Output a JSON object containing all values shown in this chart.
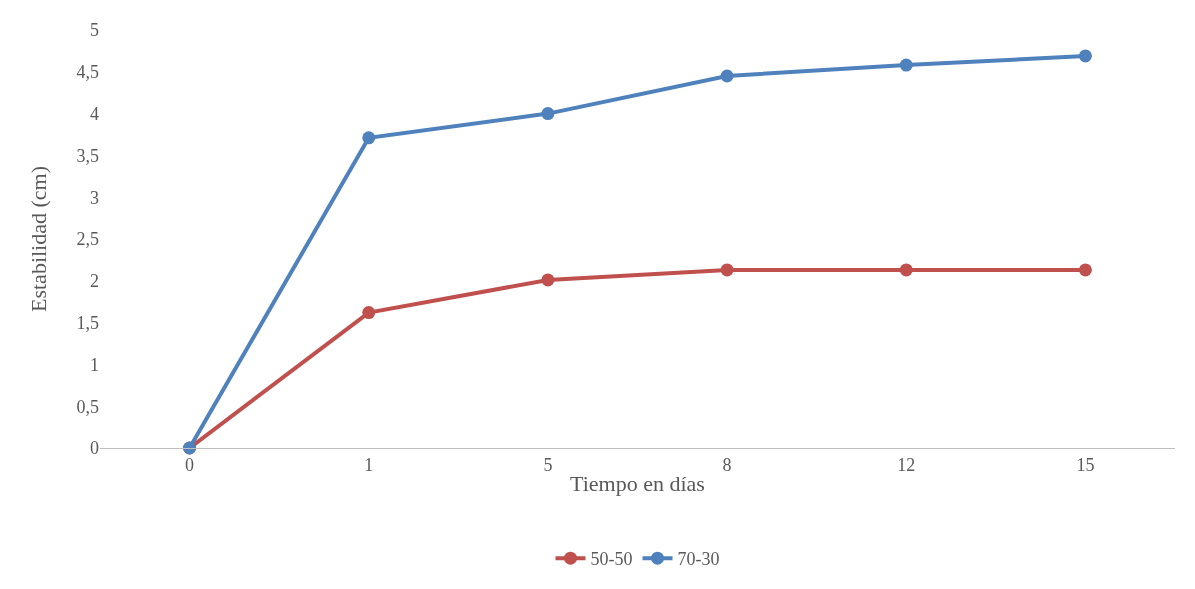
{
  "chart_data": {
    "type": "line",
    "xlabel": "Tiempo en días",
    "ylabel": "Estabilidad (cm)",
    "categories": [
      "0",
      "1",
      "5",
      "8",
      "12",
      "15"
    ],
    "series": [
      {
        "name": "50-50",
        "color": "#c0504d",
        "values": [
          0,
          1.62,
          2.01,
          2.13,
          2.13,
          2.13
        ]
      },
      {
        "name": "70-30",
        "color": "#4f81bd",
        "values": [
          0,
          3.71,
          4.0,
          4.45,
          4.58,
          4.69
        ]
      }
    ],
    "ylim": [
      0,
      5
    ],
    "yticks": [
      0,
      {
        "value": 0.5,
        "label": "0,5"
      },
      1,
      {
        "value": 1.5,
        "label": "1,5"
      },
      2,
      {
        "value": 2.5,
        "label": "2,5"
      },
      3,
      {
        "value": 3.5,
        "label": "3,5"
      },
      4,
      {
        "value": 4.5,
        "label": "4,5"
      },
      5
    ],
    "grid": false,
    "legend": "bottom",
    "marker": "circle",
    "line_style": "solid"
  }
}
